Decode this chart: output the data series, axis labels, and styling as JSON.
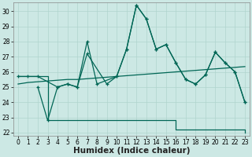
{
  "bg_color": "#cce8e4",
  "grid_color": "#b0d4ce",
  "line_color": "#006655",
  "xlabel": "Humidex (Indice chaleur)",
  "xlabel_fontsize": 7.5,
  "ylim": [
    21.8,
    30.6
  ],
  "xlim": [
    -0.5,
    23.5
  ],
  "yticks": [
    22,
    23,
    24,
    25,
    26,
    27,
    28,
    29,
    30
  ],
  "xticks": [
    0,
    1,
    2,
    3,
    4,
    5,
    6,
    7,
    8,
    9,
    10,
    11,
    12,
    13,
    14,
    15,
    16,
    17,
    18,
    19,
    20,
    21,
    22,
    23
  ],
  "line_min_x": [
    0,
    1,
    2,
    3,
    4,
    5,
    6,
    7,
    8,
    9,
    10,
    11,
    12,
    13,
    14,
    15,
    16,
    17,
    18,
    19,
    20,
    21,
    22,
    23
  ],
  "line_min_y": [
    25.7,
    25.7,
    25.7,
    22.8,
    22.8,
    22.8,
    22.8,
    22.8,
    22.8,
    22.8,
    22.8,
    22.8,
    22.8,
    22.8,
    22.8,
    22.8,
    22.2,
    22.2,
    22.2,
    22.2,
    22.2,
    22.2,
    22.2,
    22.0
  ],
  "line_trend_x": [
    0,
    1,
    2,
    3,
    4,
    5,
    6,
    7,
    8,
    9,
    10,
    11,
    12,
    13,
    14,
    15,
    16,
    17,
    18,
    19,
    20,
    21,
    22,
    23
  ],
  "line_trend_y": [
    25.2,
    25.3,
    25.35,
    25.4,
    25.45,
    25.5,
    25.5,
    25.55,
    25.6,
    25.65,
    25.7,
    25.75,
    25.8,
    25.85,
    25.9,
    25.95,
    26.0,
    26.05,
    26.1,
    26.15,
    26.2,
    26.25,
    26.3,
    26.35
  ],
  "line_main_x": [
    0,
    1,
    2,
    4,
    5,
    6,
    7,
    9,
    10,
    11,
    12,
    13,
    14,
    15,
    16,
    17,
    18,
    19,
    20,
    21,
    22,
    23
  ],
  "line_main_y": [
    25.7,
    25.7,
    25.7,
    25.0,
    25.2,
    25.0,
    27.2,
    25.2,
    25.7,
    27.5,
    30.4,
    29.5,
    27.5,
    27.8,
    26.6,
    25.5,
    25.2,
    25.8,
    27.3,
    26.6,
    26.0,
    24.0
  ],
  "line_second_x": [
    2,
    3,
    4,
    5,
    6,
    7,
    8,
    10,
    11,
    12,
    13,
    14,
    15,
    16,
    17,
    18,
    19,
    20,
    21,
    22,
    23
  ],
  "line_second_y": [
    25.0,
    22.8,
    25.0,
    25.2,
    25.0,
    28.0,
    25.2,
    25.7,
    27.5,
    30.4,
    29.5,
    27.5,
    27.8,
    26.6,
    25.5,
    25.2,
    25.8,
    27.3,
    26.6,
    26.0,
    24.0
  ]
}
